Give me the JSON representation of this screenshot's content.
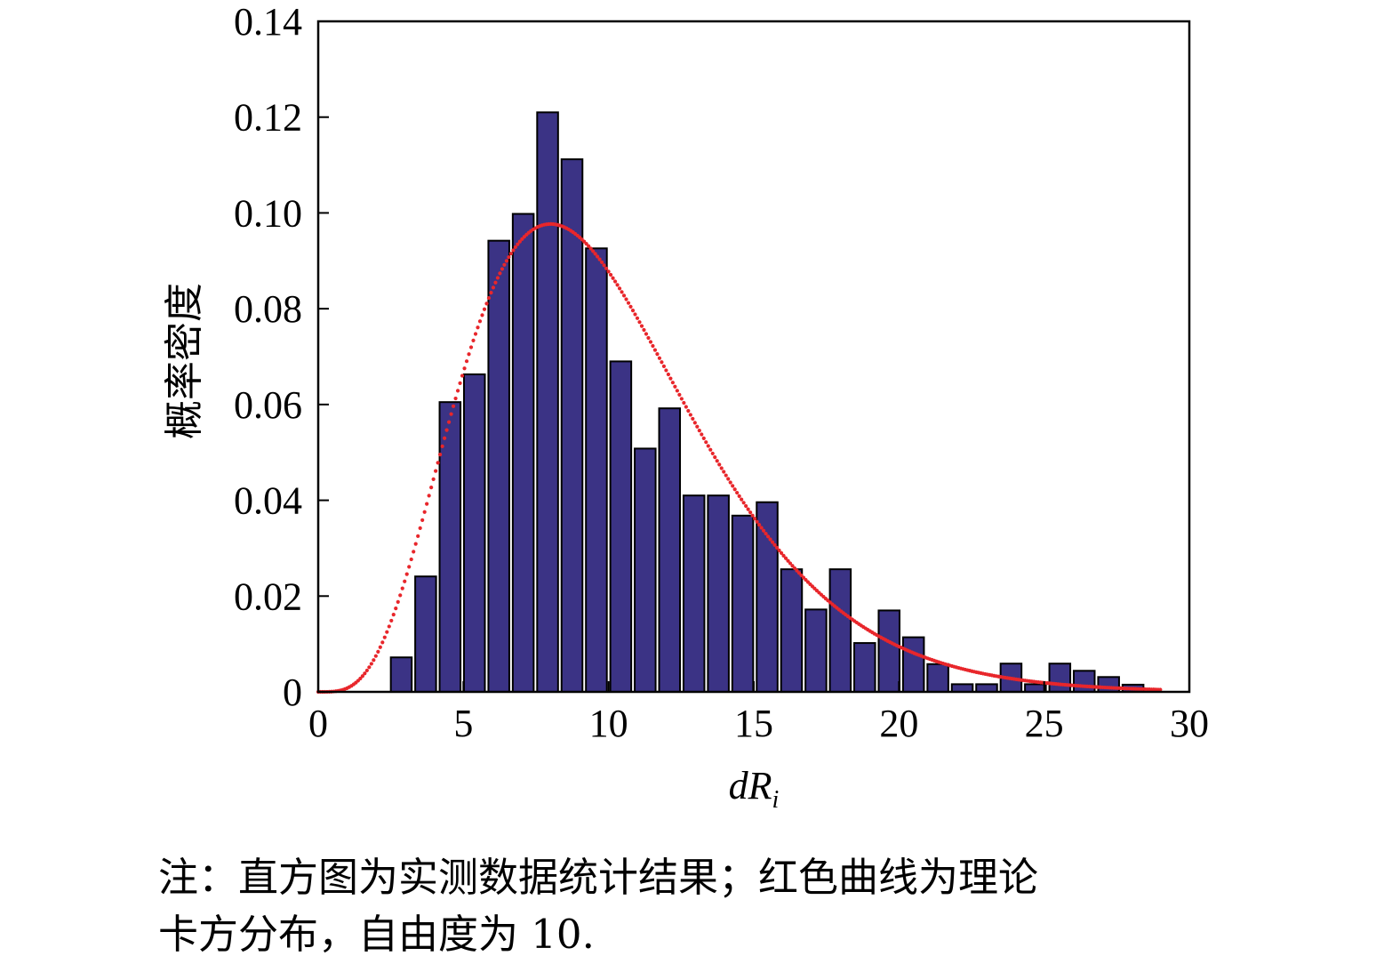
{
  "chart_data": {
    "type": "bar",
    "xlabel_main": "dR",
    "xlabel_sub": "i",
    "ylabel": "概率密度",
    "xlim": [
      0,
      30
    ],
    "ylim": [
      0,
      0.14
    ],
    "xticks": [
      "0",
      "5",
      "10",
      "15",
      "20",
      "25",
      "30"
    ],
    "yticks": [
      "0",
      "0.02",
      "0.04",
      "0.06",
      "0.08",
      "0.10",
      "0.12",
      "0.14"
    ],
    "bar_width": 0.72,
    "bars": [
      {
        "x": 2.5,
        "value": 0.0072
      },
      {
        "x": 3.34,
        "value": 0.0241
      },
      {
        "x": 4.18,
        "value": 0.0605
      },
      {
        "x": 5.02,
        "value": 0.0663
      },
      {
        "x": 5.86,
        "value": 0.0942
      },
      {
        "x": 6.7,
        "value": 0.0998
      },
      {
        "x": 7.54,
        "value": 0.121
      },
      {
        "x": 8.38,
        "value": 0.1112
      },
      {
        "x": 9.22,
        "value": 0.0926
      },
      {
        "x": 10.06,
        "value": 0.069
      },
      {
        "x": 10.9,
        "value": 0.0508
      },
      {
        "x": 11.74,
        "value": 0.0592
      },
      {
        "x": 12.58,
        "value": 0.041
      },
      {
        "x": 13.42,
        "value": 0.041
      },
      {
        "x": 14.26,
        "value": 0.0368
      },
      {
        "x": 15.1,
        "value": 0.0396
      },
      {
        "x": 15.94,
        "value": 0.0256
      },
      {
        "x": 16.78,
        "value": 0.0172
      },
      {
        "x": 17.62,
        "value": 0.0256
      },
      {
        "x": 18.46,
        "value": 0.0102
      },
      {
        "x": 19.3,
        "value": 0.017
      },
      {
        "x": 20.14,
        "value": 0.0114
      },
      {
        "x": 20.98,
        "value": 0.0058
      },
      {
        "x": 21.82,
        "value": 0.0016
      },
      {
        "x": 22.66,
        "value": 0.0016
      },
      {
        "x": 23.5,
        "value": 0.0059
      },
      {
        "x": 24.34,
        "value": 0.0016
      },
      {
        "x": 25.18,
        "value": 0.0059
      },
      {
        "x": 26.02,
        "value": 0.0044
      },
      {
        "x": 26.86,
        "value": 0.0031
      },
      {
        "x": 27.7,
        "value": 0.0015
      }
    ],
    "curve": {
      "distribution": "chi-square",
      "degrees_of_freedom": 10,
      "x_range": [
        0,
        29
      ]
    },
    "colors": {
      "bar_fill": "#3b3385",
      "bar_edge": "#000000",
      "curve": "#e8262b",
      "axis": "#000000"
    },
    "grid": false
  },
  "caption": {
    "line1": "注：直方图为实测数据统计结果；红色曲线为理论",
    "line2": "卡方分布，自由度为 10."
  }
}
